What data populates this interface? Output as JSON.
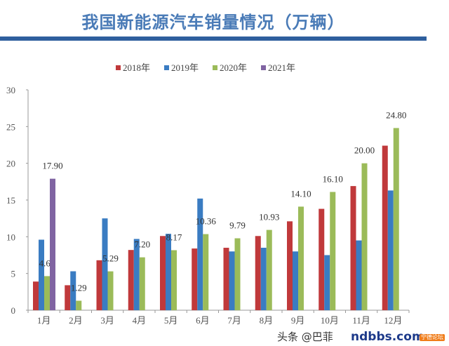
{
  "chart_data": {
    "type": "bar",
    "title": "我国新能源汽车销量情况（万辆）",
    "categories": [
      "1月",
      "2月",
      "3月",
      "4月",
      "5月",
      "6月",
      "7月",
      "8月",
      "9月",
      "10月",
      "11月",
      "12月"
    ],
    "ylim": [
      0,
      30
    ],
    "yticks": [
      0,
      5,
      10,
      15,
      20,
      25,
      30
    ],
    "grid": false,
    "legend": "top",
    "series": [
      {
        "name": "2018年",
        "color": "#c0393b",
        "values": [
          3.9,
          3.4,
          6.8,
          8.2,
          10.1,
          8.4,
          8.5,
          10.1,
          12.1,
          13.8,
          16.9,
          22.4
        ]
      },
      {
        "name": "2019年",
        "color": "#3a7cc2",
        "values": [
          9.6,
          5.3,
          12.5,
          9.7,
          10.4,
          15.2,
          8.0,
          8.5,
          8.0,
          7.5,
          9.5,
          16.3
        ]
      },
      {
        "name": "2020年",
        "color": "#9bbb59",
        "values": [
          4.64,
          1.29,
          5.29,
          7.2,
          8.17,
          10.36,
          9.79,
          10.93,
          14.1,
          16.1,
          20.0,
          24.8
        ],
        "labels": [
          "4.64",
          "1.29",
          "5.29",
          "7.20",
          "8.17",
          "10.36",
          "9.79",
          "10.93",
          "14.10",
          "16.10",
          "20.00",
          "24.80"
        ]
      },
      {
        "name": "2021年",
        "color": "#8064a2",
        "values": [
          17.9,
          null,
          null,
          null,
          null,
          null,
          null,
          null,
          null,
          null,
          null,
          null
        ],
        "labels": [
          "17.90"
        ]
      }
    ]
  },
  "watermark": {
    "source": "头条 @巴菲",
    "site": "ndbbs.com",
    "badge": "宁德论坛"
  }
}
